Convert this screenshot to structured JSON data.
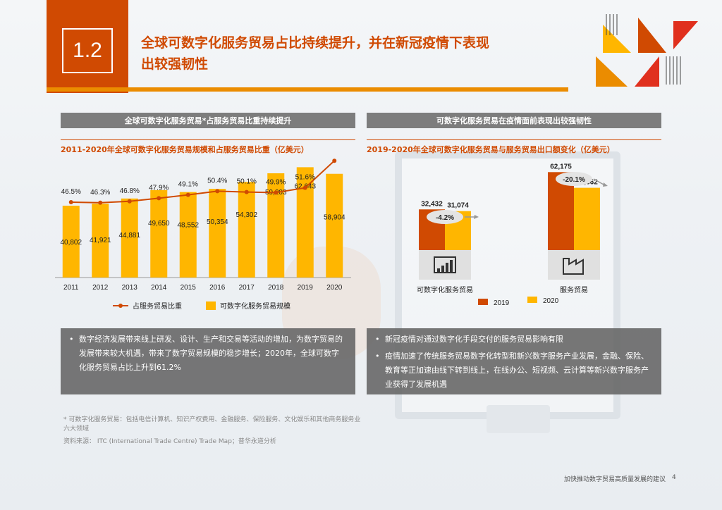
{
  "header": {
    "section_number": "1.2",
    "title_line1": "全球可数字化服务贸易占比持续提升，并在新冠疫情下表现",
    "title_line2": "出较强韧性"
  },
  "left_panel": {
    "section_title": "全球可数字化服务贸易*占服务贸易比重持续提升",
    "chart_title": "2011-2020年全球可数字化服务贸易规模和占服务贸易比重（亿美元）",
    "legend_line": "占服务贸易比重",
    "legend_bar": "可数字化服务贸易规模",
    "bullets": [
      "数字经济发展带来线上研发、设计、生产和交易等活动的增加，为数字贸易的发展带来较大机遇，带来了数字贸易规模的稳步增长；2020年，全球可数字化服务贸易占比上升到61.2%"
    ]
  },
  "right_panel": {
    "section_title": "可数字化服务贸易在疫情面前表现出较强韧性",
    "chart_title": "2019-2020年全球可数字化服务贸易与服务贸易出口额变化（亿美元）",
    "legend_2019": "2019",
    "legend_2020": "2020",
    "bullets": [
      "新冠疫情对通过数字化手段交付的服务贸易影响有限",
      "疫情加速了传统服务贸易数字化转型和新兴数字服务产业发展，金融、保险、教育等正加速由线下转到线上，在线办公、短视频、云计算等新兴数字服务产业获得了发展机遇"
    ]
  },
  "chart_data": [
    {
      "type": "bar",
      "title": "2011-2020年全球可数字化服务贸易规模和占服务贸易比重（亿美元）",
      "categories": [
        "2011",
        "2012",
        "2013",
        "2014",
        "2015",
        "2016",
        "2017",
        "2018",
        "2019",
        "2020"
      ],
      "series": [
        {
          "name": "可数字化服务贸易规模",
          "type": "bar",
          "values": [
            40802,
            41921,
            44881,
            49650,
            48552,
            50354,
            54302,
            59203,
            62643,
            58904
          ],
          "labels": [
            "40,802",
            "41,921",
            "44,881",
            "49,650",
            "48,552",
            "50,354",
            "54,302",
            "59,203",
            "62,643",
            "58,904"
          ]
        },
        {
          "name": "占服务贸易比重",
          "type": "line",
          "values": [
            46.5,
            46.3,
            46.8,
            47.9,
            49.1,
            50.4,
            50.1,
            49.9,
            51.6,
            61.2
          ],
          "labels": [
            "46.5%",
            "46.3%",
            "46.8%",
            "47.9%",
            "49.1%",
            "50.4%",
            "50.1%",
            "49.9%",
            "51.6%",
            "61.2%"
          ]
        }
      ],
      "colors": {
        "bar": "#ffb600",
        "line": "#d04a02"
      }
    },
    {
      "type": "bar",
      "title": "2019-2020年全球可数字化服务贸易与服务贸易出口额变化（亿美元）",
      "categories": [
        "可数字化服务贸易",
        "服务贸易"
      ],
      "series": [
        {
          "name": "2019",
          "values": [
            32432,
            62175
          ],
          "labels": [
            "32,432",
            "62,175"
          ]
        },
        {
          "name": "2020",
          "values": [
            31074,
            49662
          ],
          "labels": [
            "31,074",
            "49,662"
          ]
        }
      ],
      "changes": [
        "-4.2%",
        "-20.1%"
      ],
      "colors": {
        "2019": "#d04a02",
        "2020": "#ffb600"
      }
    }
  ],
  "footnote": "* 可数字化服务贸易：包括电信计算机、知识产权费用、金融服务、保险服务、文化娱乐和其他商务服务业六大领域",
  "source": "资料来源： ITC (International Trade Centre) Trade Map；普华永道分析",
  "footer": {
    "report_title": "加快推动数字贸易高质量发展的建议",
    "page_number": "4"
  }
}
